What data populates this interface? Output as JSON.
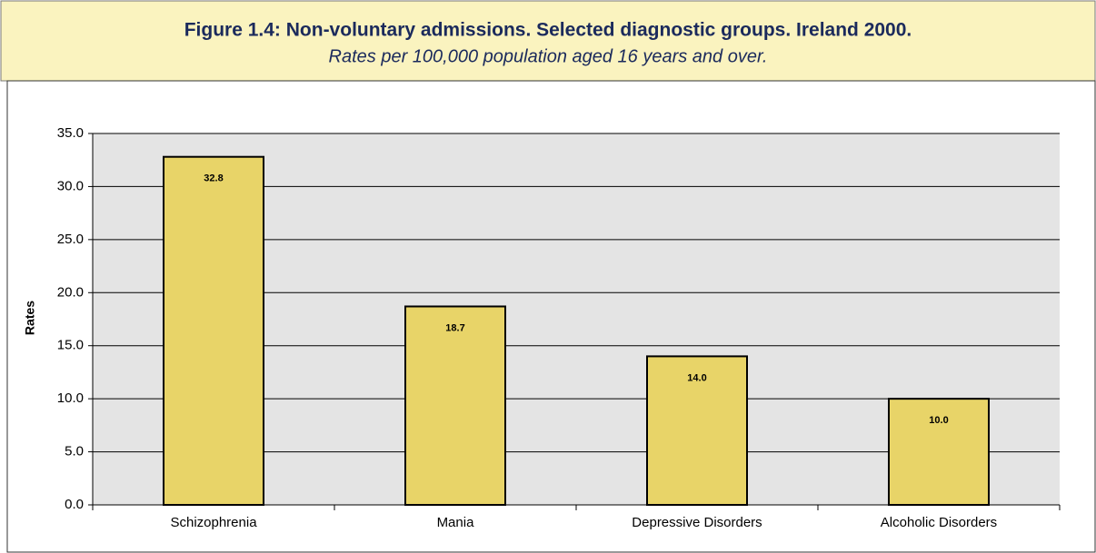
{
  "chart_data": {
    "type": "bar",
    "title": "Figure 1.4: Non-voluntary admissions.  Selected diagnostic groups.  Ireland 2000.",
    "subtitle": "Rates per 100,000 population aged 16 years and over.",
    "y_label": "Rates",
    "categories": [
      "Schizophrenia",
      "Mania",
      "Depressive Disorders",
      "Alcoholic Disorders"
    ],
    "values": [
      32.8,
      18.7,
      14.0,
      10.0
    ],
    "value_labels": [
      "32.8",
      "18.7",
      "14.0",
      "10.0"
    ],
    "color": "#e8d468",
    "ylim": [
      0,
      35
    ],
    "yticks": [
      {
        "value": 0,
        "label": "0.0"
      },
      {
        "value": 5,
        "label": "5.0"
      },
      {
        "value": 10,
        "label": "10.0"
      },
      {
        "value": 15,
        "label": "15.0"
      },
      {
        "value": 20,
        "label": "20.0"
      },
      {
        "value": 25,
        "label": "25.0"
      },
      {
        "value": 30,
        "label": "30.0"
      },
      {
        "value": 35,
        "label": "35.0"
      }
    ],
    "grid": true
  }
}
